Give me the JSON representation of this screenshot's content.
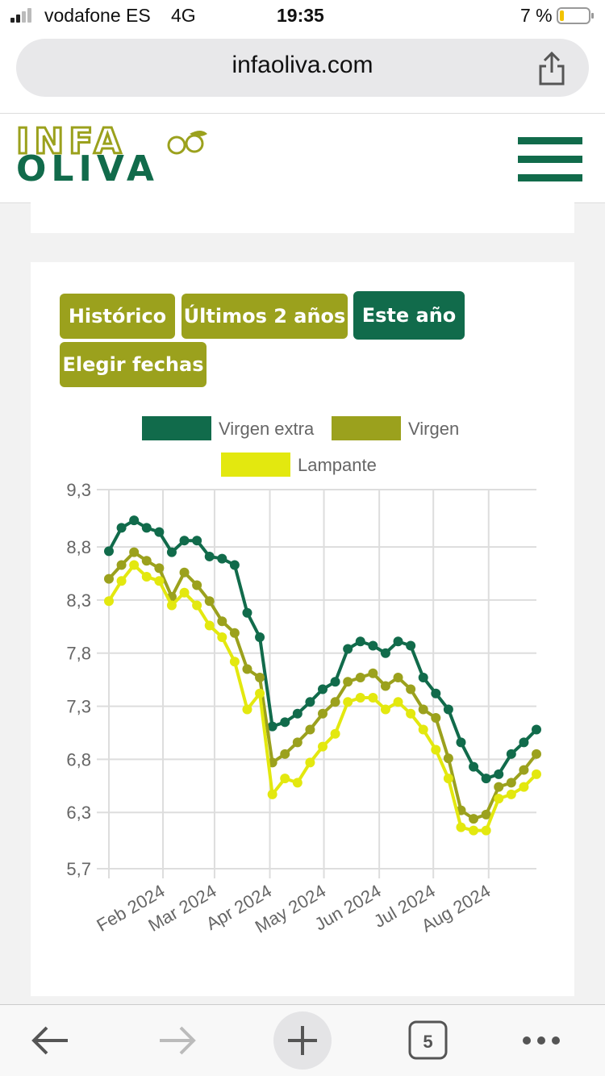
{
  "status_bar": {
    "carrier": "vodafone ES",
    "network": "4G",
    "time": "19:35",
    "battery": "7 %"
  },
  "browser": {
    "url": "infaoliva.com",
    "tabs": "5"
  },
  "logo": {
    "line1": "INFA",
    "line2": "OLIVA"
  },
  "buttons": [
    "Histórico",
    "Últimos 2 años",
    "Este año",
    "Elegir fechas"
  ],
  "chart_data": {
    "type": "line",
    "categories": [
      null,
      null,
      null,
      null,
      null,
      null,
      null,
      null,
      null,
      null,
      null,
      null,
      null,
      null,
      null,
      null,
      null,
      null,
      null,
      null,
      null,
      null,
      null,
      null,
      null,
      null,
      null,
      null,
      null,
      null,
      null,
      null,
      null,
      null,
      null
    ],
    "xlim": [
      0,
      34
    ],
    "xticks": [
      {
        "value": 4.3,
        "label": "Feb 2024"
      },
      {
        "value": 8.4,
        "label": "Mar 2024"
      },
      {
        "value": 12.8,
        "label": "Apr 2024"
      },
      {
        "value": 17.1,
        "label": "May 2024"
      },
      {
        "value": 21.5,
        "label": "Jun 2024"
      },
      {
        "value": 25.8,
        "label": "Jul 2024"
      },
      {
        "value": 30.2,
        "label": "Aug 2024"
      }
    ],
    "ylim": [
      5.74,
      9.31
    ],
    "yticks": [
      {
        "value": 9.31,
        "label": "9,3"
      },
      {
        "value": 8.77,
        "label": "8,8"
      },
      {
        "value": 8.27,
        "label": "8,3"
      },
      {
        "value": 7.77,
        "label": "7,8"
      },
      {
        "value": 7.27,
        "label": "7,3"
      },
      {
        "value": 6.77,
        "label": "6,8"
      },
      {
        "value": 6.27,
        "label": "6,3"
      },
      {
        "value": 5.74,
        "label": "5,7"
      }
    ],
    "grid": true,
    "series": [
      {
        "name": "Virgen extra",
        "color": "#116b4b",
        "values": [
          8.73,
          8.95,
          9.02,
          8.95,
          8.91,
          8.72,
          8.83,
          8.83,
          8.68,
          8.66,
          8.6,
          8.15,
          7.92,
          7.08,
          7.12,
          7.2,
          7.31,
          7.43,
          7.5,
          7.81,
          7.88,
          7.84,
          7.77,
          7.88,
          7.84,
          7.54,
          7.39,
          7.24,
          6.93,
          6.7,
          6.59,
          6.63,
          6.82,
          6.93,
          7.05
        ]
      },
      {
        "name": "Virgen",
        "color": "#9ba11d",
        "values": [
          8.47,
          8.6,
          8.72,
          8.64,
          8.57,
          8.3,
          8.53,
          8.41,
          8.26,
          8.07,
          7.96,
          7.62,
          7.54,
          6.74,
          6.82,
          6.93,
          7.05,
          7.2,
          7.31,
          7.5,
          7.54,
          7.58,
          7.46,
          7.54,
          7.43,
          7.24,
          7.16,
          6.78,
          6.29,
          6.21,
          6.25,
          6.51,
          6.55,
          6.67,
          6.82
        ]
      },
      {
        "name": "Lampante",
        "color": "#e3e80f",
        "values": [
          8.26,
          8.45,
          8.6,
          8.49,
          8.45,
          8.22,
          8.34,
          8.22,
          8.03,
          7.92,
          7.69,
          7.24,
          7.39,
          6.44,
          6.59,
          6.55,
          6.74,
          6.89,
          7.01,
          7.31,
          7.35,
          7.35,
          7.24,
          7.31,
          7.2,
          7.05,
          6.86,
          6.59,
          6.13,
          6.1,
          6.1,
          6.4,
          6.44,
          6.51,
          6.63
        ]
      }
    ]
  }
}
